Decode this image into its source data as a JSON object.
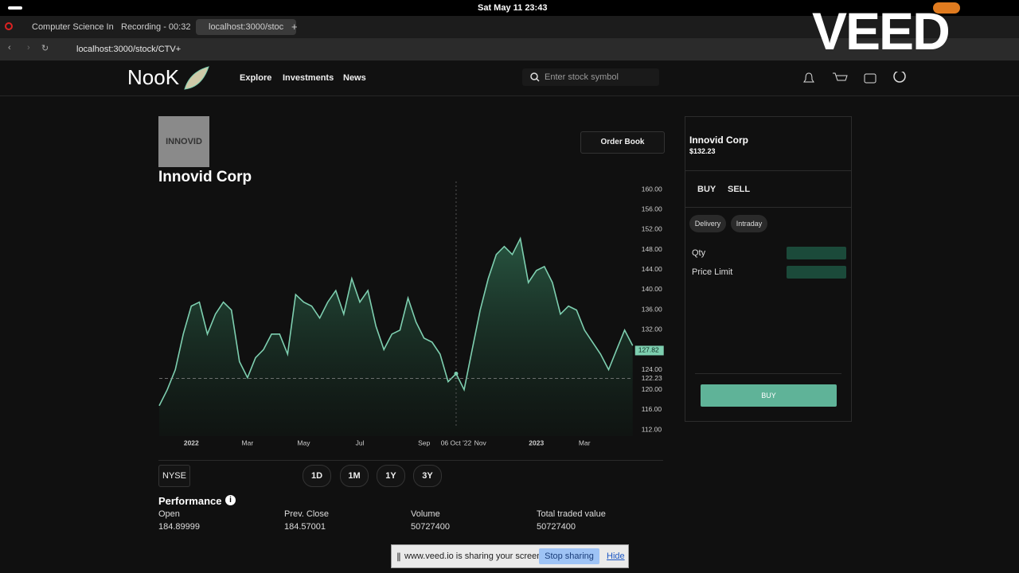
{
  "browser": {
    "time": "Sat May 11  23:43",
    "tabs": [
      "Computer Science In",
      "Recording - 00:32",
      "localhost:3000/stoc"
    ],
    "url": "localhost:3000/stock/CTV+",
    "watermark": "VEED"
  },
  "nav": {
    "logo": "NooK",
    "links": [
      "Explore",
      "Investments",
      "News"
    ],
    "search_placeholder": "Enter stock symbol"
  },
  "company": {
    "logo_text": "INNOVID",
    "name": "Innovid Corp",
    "order_book": "Order Book"
  },
  "chart_data": {
    "type": "line",
    "color": "#7ecfb0",
    "categories": [
      null,
      null,
      null,
      null,
      "2022",
      null,
      null,
      null,
      null,
      null,
      null,
      "Mar",
      null,
      null,
      null,
      null,
      null,
      null,
      "May",
      null,
      null,
      null,
      null,
      null,
      null,
      "Jul",
      null,
      null,
      null,
      null,
      null,
      null,
      null,
      "Sep",
      null,
      null,
      null,
      "06 Oct '22",
      null,
      null,
      "Nov",
      null,
      null,
      null,
      null,
      null,
      null,
      "2023",
      null,
      null,
      null,
      null,
      null,
      "Mar",
      null,
      null,
      null,
      null,
      null,
      null
    ],
    "values": [
      116.8,
      120,
      124,
      131.1,
      136.7,
      137.5,
      131.1,
      135.1,
      137.5,
      135.9,
      125.6,
      122.4,
      126.4,
      128,
      131.1,
      131.1,
      127.1,
      139,
      137.5,
      136.7,
      134.3,
      137.5,
      139.8,
      135.1,
      142.2,
      137.5,
      139.8,
      132.7,
      128,
      131.1,
      131.9,
      138.3,
      133.5,
      130.3,
      129.5,
      127.1,
      121.6,
      123.2,
      120,
      128,
      135.9,
      142.2,
      147,
      148.6,
      147,
      150.2,
      141.4,
      143.8,
      144.6,
      141.4,
      135.1,
      136.7,
      135.9,
      131.9,
      129.5,
      127.1,
      124,
      128,
      131.9,
      128.8
    ],
    "ylim": [
      112,
      160
    ],
    "yticks": [
      {
        "value": 112,
        "label": "112.00"
      },
      {
        "value": 116,
        "label": "116.00"
      },
      {
        "value": 120,
        "label": "120.00"
      },
      {
        "value": 124,
        "label": "124.00"
      },
      {
        "value": 132,
        "label": "132.00"
      },
      {
        "value": 136,
        "label": "136.00"
      },
      {
        "value": 140,
        "label": "140.00"
      },
      {
        "value": 144,
        "label": "144.00"
      },
      {
        "value": 148,
        "label": "148.00"
      },
      {
        "value": 152,
        "label": "152.00"
      },
      {
        "value": 156,
        "label": "156.00"
      },
      {
        "value": 160,
        "label": "160.00"
      }
    ],
    "reference_line": 122.23,
    "last_price": 127.82
  },
  "exchange": "NYSE",
  "ranges": [
    "1D",
    "1M",
    "1Y",
    "3Y"
  ],
  "performance": {
    "title": "Performance",
    "items": [
      {
        "label": "Open",
        "value": "184.89999"
      },
      {
        "label": "Prev. Close",
        "value": "184.57001"
      },
      {
        "label": "Volume",
        "value": "50727400"
      },
      {
        "label": "Total traded value",
        "value": "50727400"
      }
    ]
  },
  "order_panel": {
    "name": "Innovid Corp",
    "price": "$132.23",
    "sides": [
      "BUY",
      "SELL"
    ],
    "modes": [
      "Delivery",
      "Intraday"
    ],
    "fields": [
      "Qty",
      "Price Limit"
    ],
    "submit": "BUY"
  },
  "share_bar": {
    "message": "www.veed.io is sharing your screen.",
    "stop": "Stop sharing",
    "hide": "Hide"
  }
}
